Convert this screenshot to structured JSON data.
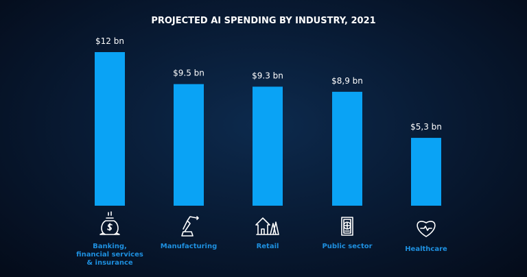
{
  "chart_data": {
    "type": "bar",
    "title": "PROJECTED AI SPENDING BY INDUSTRY, 2021",
    "categories": [
      "Banking, financial services & insurance",
      "Manufacturing",
      "Retail",
      "Public sector",
      "Healthcare"
    ],
    "category_lines": [
      [
        "Banking,",
        "financial services",
        "& insurance"
      ],
      [
        "Manufacturing"
      ],
      [
        "Retail"
      ],
      [
        "Public sector"
      ],
      [
        "Healthcare"
      ]
    ],
    "values": [
      12,
      9.5,
      9.3,
      8.9,
      5.3
    ],
    "data_labels": [
      "$12 bn",
      "$9.5 bn",
      "$9.3 bn",
      "$8,9 bn",
      "$5,3 bn"
    ],
    "unit": "bn USD",
    "icons": [
      "money-bag-icon",
      "robot-arm-icon",
      "store-trees-icon",
      "passport-icon",
      "heart-pulse-icon"
    ],
    "ylim": [
      0,
      12.5
    ],
    "grid": false,
    "colors": {
      "bar": "#0aa3f5",
      "category_label": "#1e90e0",
      "background": "#081a33"
    }
  }
}
